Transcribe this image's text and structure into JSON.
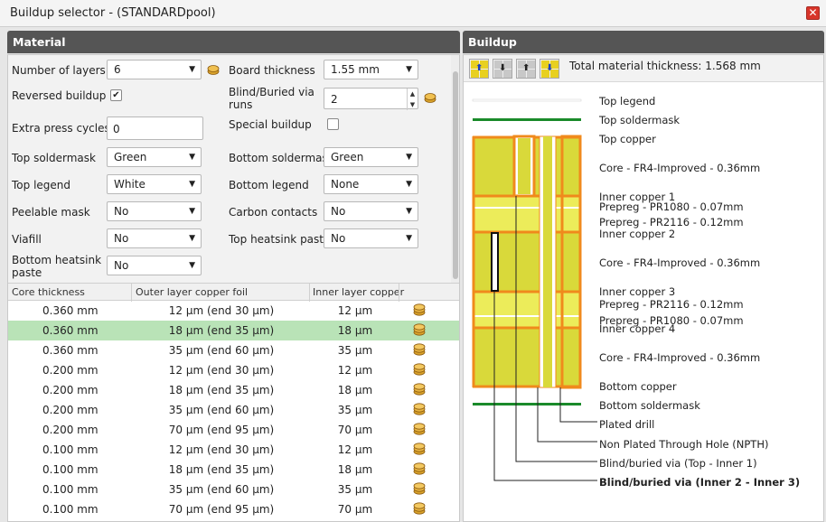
{
  "window": {
    "title": "Buildup selector - (STANDARDpool)",
    "close_glyph": "✕"
  },
  "material": {
    "header": "Material",
    "fields": {
      "number_of_layers": {
        "label": "Number of layers",
        "value": "6"
      },
      "board_thickness": {
        "label": "Board thickness",
        "value": "1.55 mm"
      },
      "reversed_buildup": {
        "label": "Reversed buildup",
        "checked": "✔"
      },
      "blind_buried_runs": {
        "label": "Blind/Buried via runs",
        "value": "2"
      },
      "extra_press_cycles": {
        "label": "Extra press cycles",
        "value": "0"
      },
      "special_buildup": {
        "label": "Special buildup",
        "checked": ""
      },
      "top_soldermask": {
        "label": "Top soldermask",
        "value": "Green"
      },
      "bottom_soldermask": {
        "label": "Bottom soldermask",
        "value": "Green"
      },
      "top_legend": {
        "label": "Top legend",
        "value": "White"
      },
      "bottom_legend": {
        "label": "Bottom legend",
        "value": "None"
      },
      "peelable_mask": {
        "label": "Peelable mask",
        "value": "No"
      },
      "carbon_contacts": {
        "label": "Carbon contacts",
        "value": "No"
      },
      "viafill": {
        "label": "Viafill",
        "value": "No"
      },
      "top_heatsink_paste": {
        "label": "Top heatsink paste",
        "value": "No"
      },
      "bottom_heatsink_paste": {
        "label": "Bottom heatsink paste",
        "value": "No"
      }
    },
    "table": {
      "columns": [
        "Core thickness",
        "Outer layer copper foil",
        "Inner layer copper"
      ],
      "selected_row": 1,
      "rows": [
        {
          "core": "0.360 mm",
          "outer": "12 µm (end 30 µm)",
          "inner": "12 µm"
        },
        {
          "core": "0.360 mm",
          "outer": "18 µm (end 35 µm)",
          "inner": "18 µm"
        },
        {
          "core": "0.360 mm",
          "outer": "35 µm (end 60 µm)",
          "inner": "35 µm"
        },
        {
          "core": "0.200 mm",
          "outer": "12 µm (end 30 µm)",
          "inner": "12 µm"
        },
        {
          "core": "0.200 mm",
          "outer": "18 µm (end 35 µm)",
          "inner": "18 µm"
        },
        {
          "core": "0.200 mm",
          "outer": "35 µm (end 60 µm)",
          "inner": "35 µm"
        },
        {
          "core": "0.200 mm",
          "outer": "70 µm (end 95 µm)",
          "inner": "70 µm"
        },
        {
          "core": "0.100 mm",
          "outer": "12 µm (end 30 µm)",
          "inner": "12 µm"
        },
        {
          "core": "0.100 mm",
          "outer": "18 µm (end 35 µm)",
          "inner": "18 µm"
        },
        {
          "core": "0.100 mm",
          "outer": "35 µm (end 60 µm)",
          "inner": "35 µm"
        },
        {
          "core": "0.100 mm",
          "outer": "70 µm (end 95 µm)",
          "inner": "70 µm"
        }
      ]
    }
  },
  "buildup": {
    "header": "Buildup",
    "total_thickness": "Total material thickness: 1.568 mm",
    "layers": {
      "top_legend": "Top legend",
      "top_soldermask": "Top soldermask",
      "top_copper": "Top copper",
      "core_1": "Core - FR4-Improved - 0.36mm",
      "inner_copper_1": "Inner copper 1",
      "prepreg_1": "Prepreg - PR1080 - 0.07mm",
      "prepreg_2": "Prepreg - PR2116 - 0.12mm",
      "inner_copper_2": "Inner copper 2",
      "core_2": "Core - FR4-Improved - 0.36mm",
      "inner_copper_3": "Inner copper 3",
      "prepreg_3": "Prepreg - PR2116 - 0.12mm",
      "prepreg_4": "Prepreg - PR1080 - 0.07mm",
      "inner_copper_4": "Inner copper 4",
      "core_3": "Core - FR4-Improved - 0.36mm",
      "bottom_copper": "Bottom copper",
      "bottom_soldermask": "Bottom soldermask",
      "plated_drill": "Plated drill",
      "npth": "Non Plated Through Hole (NPTH)",
      "via_top_inner1": "Blind/buried via (Top - Inner 1)",
      "via_inner2_inner3": "Blind/buried via (Inner 2 - Inner 3)"
    },
    "colors": {
      "core": "#d9d93a",
      "prepreg": "#ecec5a",
      "copper": "#f08a1c",
      "soldermask": "#1a8a2a",
      "legend": "#ffffff"
    }
  }
}
